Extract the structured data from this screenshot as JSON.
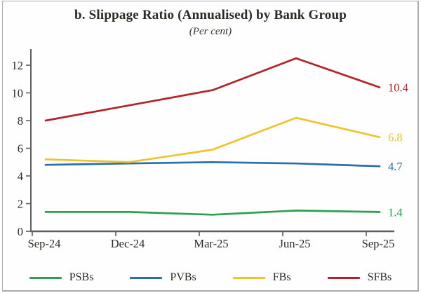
{
  "header": {
    "title": "b. Slippage Ratio (Annualised) by Bank Group",
    "subtitle": "(Per cent)"
  },
  "chart_data": {
    "type": "line",
    "title": "b. Slippage Ratio (Annualised) by Bank Group",
    "subtitle_unit": "(Per cent)",
    "categories": [
      "Sep-24",
      "Dec-24",
      "Mar-25",
      "Jun-25",
      "Sep-25"
    ],
    "series": [
      {
        "name": "PSBs",
        "color": "#2ba04f",
        "values": [
          1.4,
          1.4,
          1.2,
          1.5,
          1.4
        ],
        "end_label": "1.4"
      },
      {
        "name": "PVBs",
        "color": "#2b6cab",
        "values": [
          4.8,
          4.9,
          5.0,
          4.9,
          4.7
        ],
        "end_label": "4.7"
      },
      {
        "name": "FBs",
        "color": "#eec32d",
        "values": [
          5.2,
          5.0,
          5.9,
          8.2,
          6.8
        ],
        "end_label": "6.8"
      },
      {
        "name": "SFBs",
        "color": "#b22328",
        "values": [
          8.0,
          9.1,
          10.2,
          12.5,
          10.4
        ],
        "end_label": "10.4"
      }
    ],
    "xlabel": "",
    "ylabel": "",
    "ylim": [
      0,
      13.2
    ],
    "yticks": [
      0,
      2,
      4,
      6,
      8,
      10,
      12
    ],
    "grid": false,
    "legend_position": "bottom"
  },
  "colors": {
    "axis": "#5f5f5f",
    "tick_text": "#2d2a24",
    "frame_border": "#ababab"
  }
}
